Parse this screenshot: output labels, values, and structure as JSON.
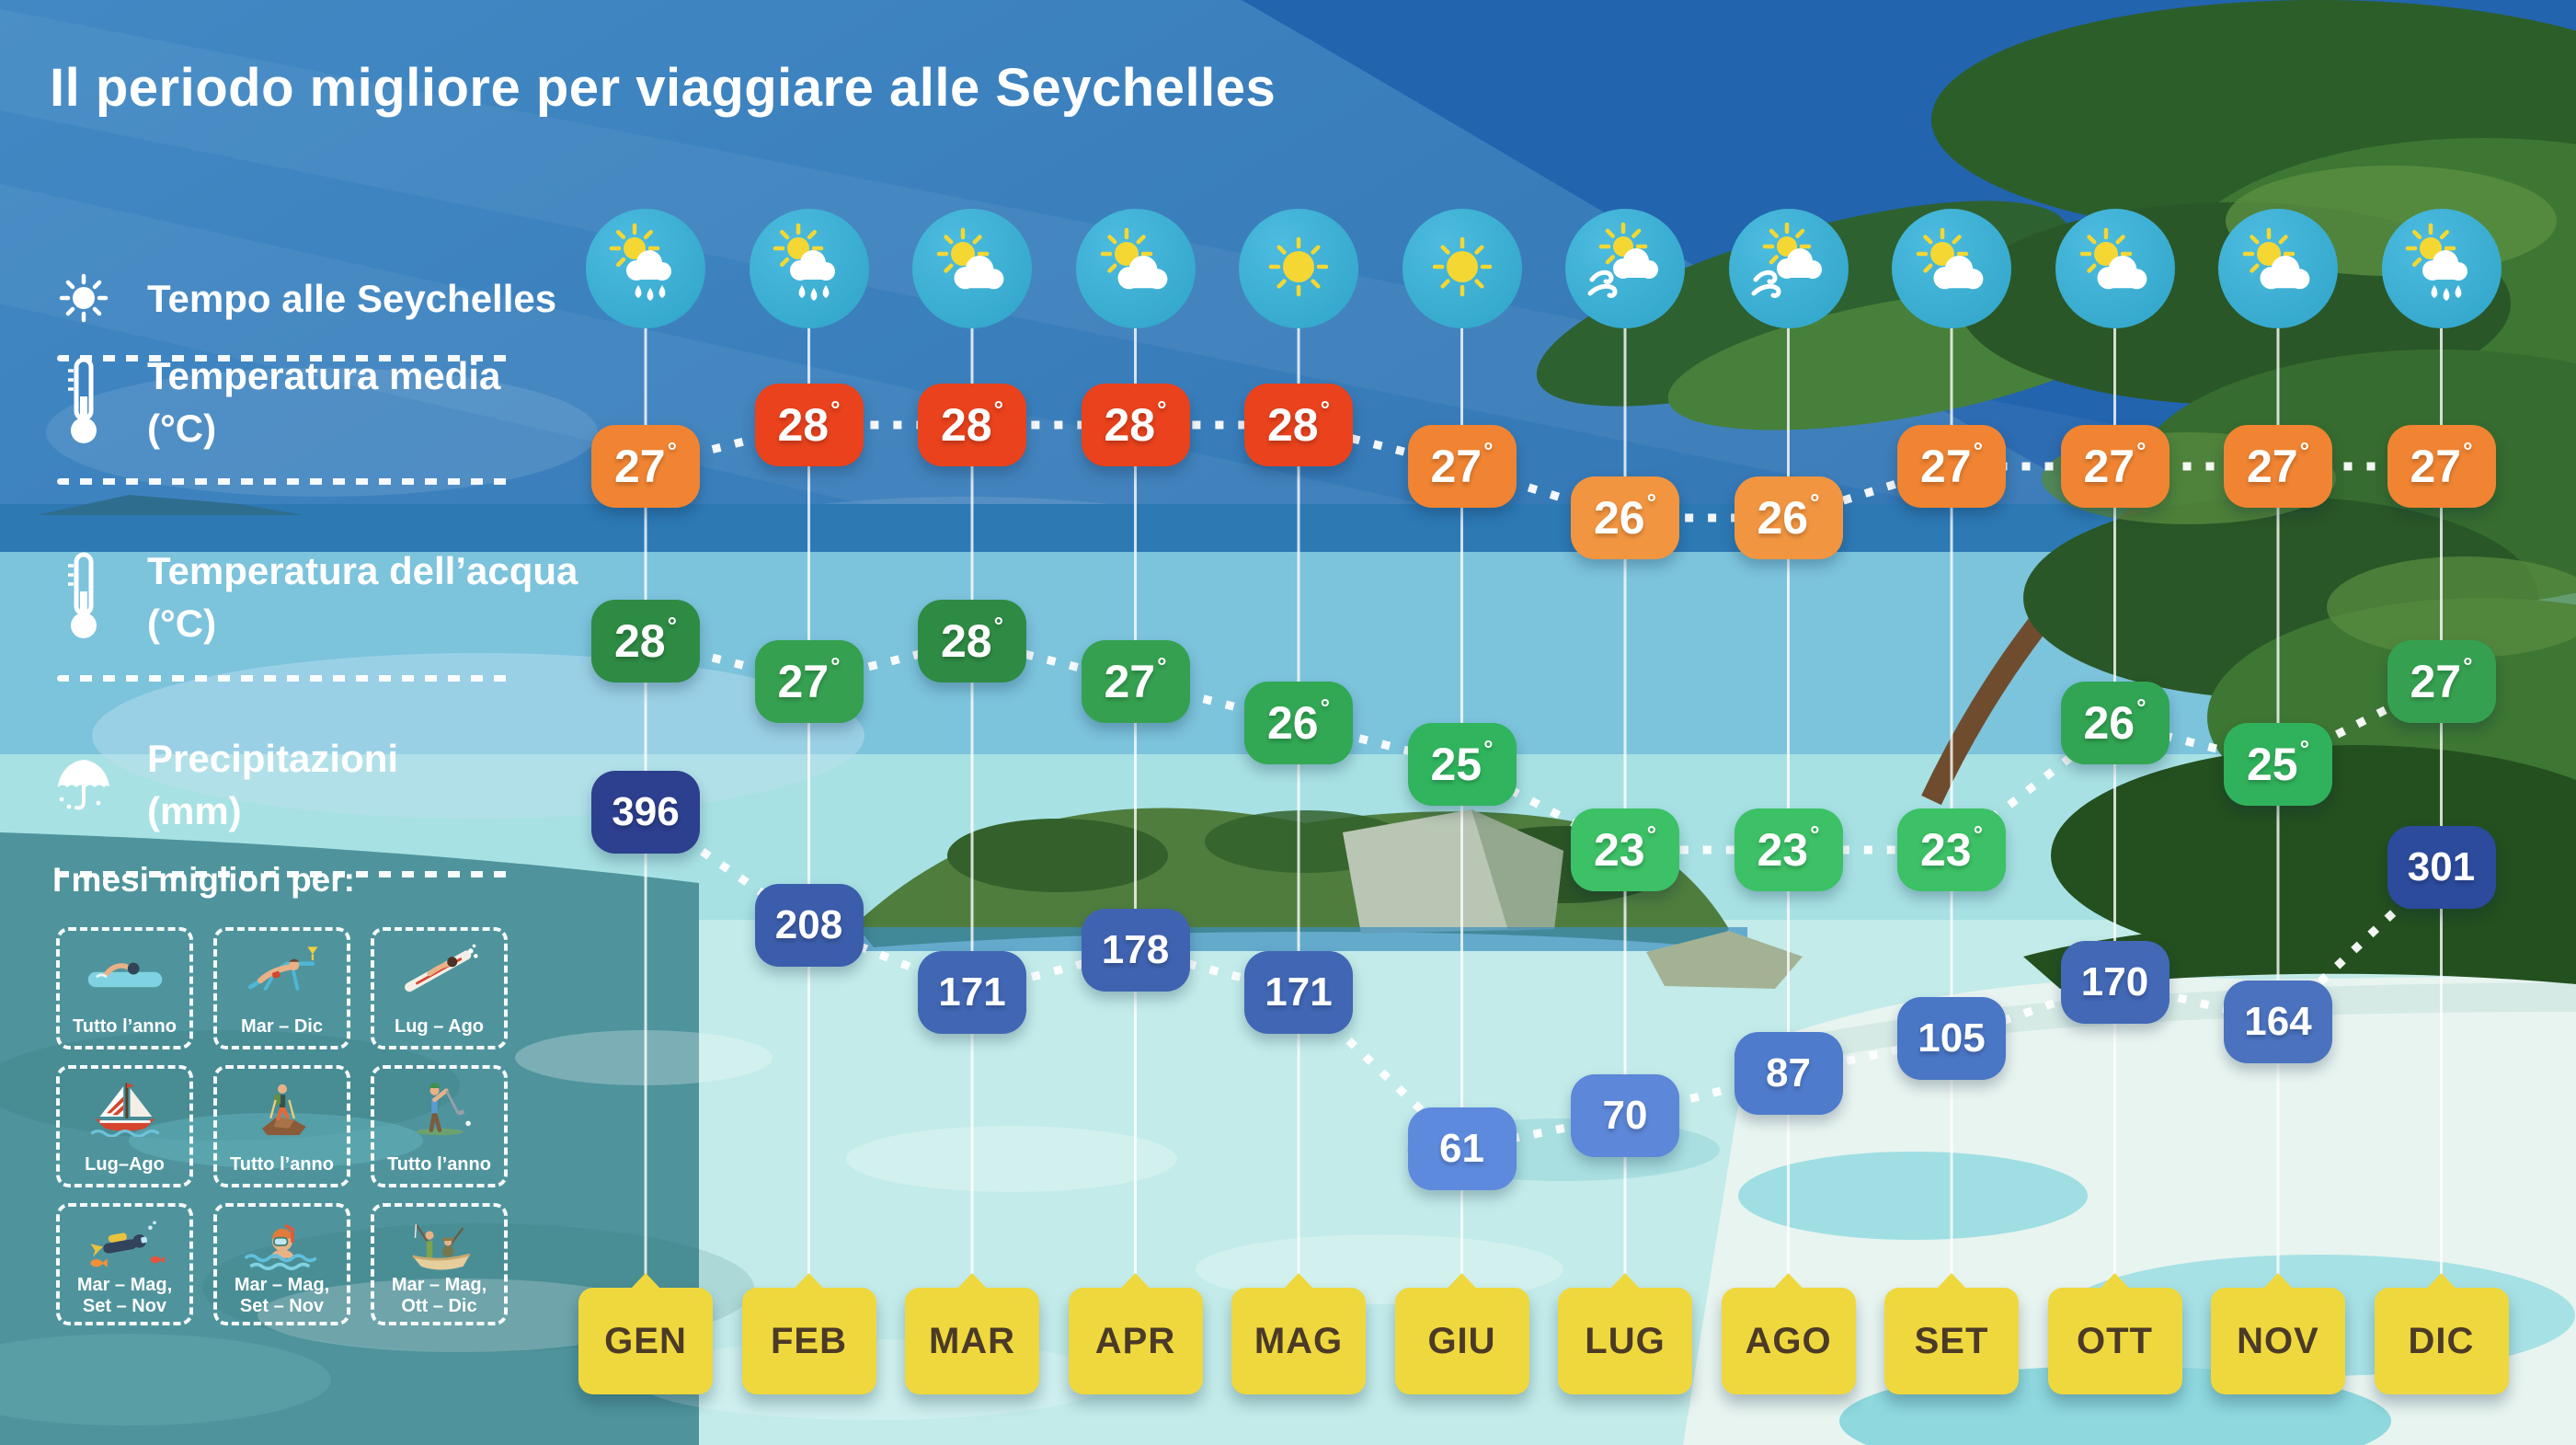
{
  "title": "Il periodo migliore per viaggiare alle Seychelles",
  "legend": {
    "weather_label": "Tempo alle Seychelles",
    "avg_temp_label": "Temperatura media",
    "avg_temp_unit": "(°C)",
    "water_temp_label": "Temperatura dell’acqua",
    "water_temp_unit": "(°C)",
    "precip_label": "Precipitazioni",
    "precip_unit": "(mm)"
  },
  "best_months": {
    "title": "I mesi migliori per:",
    "activities": [
      {
        "icon": "swimming-icon",
        "period": "Tutto l’anno"
      },
      {
        "icon": "sunbathing-icon",
        "period": "Mar – Dic"
      },
      {
        "icon": "surfing-icon",
        "period": "Lug – Ago"
      },
      {
        "icon": "sailing-icon",
        "period": "Lug–Ago"
      },
      {
        "icon": "hiking-icon",
        "period": "Tutto l’anno"
      },
      {
        "icon": "golf-icon",
        "period": "Tutto l’anno"
      },
      {
        "icon": "scuba-diving-icon",
        "period": "Mar – Mag,\nSet – Nov"
      },
      {
        "icon": "snorkeling-icon",
        "period": "Mar – Mag,\nSet – Nov"
      },
      {
        "icon": "fishing-icon",
        "period": "Mar – Mag,\nOtt – Dic"
      }
    ]
  },
  "chart_data": {
    "type": "table",
    "title": "Il periodo migliore per viaggiare alle Seychelles",
    "categories": [
      "GEN",
      "FEB",
      "MAR",
      "APR",
      "MAG",
      "GIU",
      "LUG",
      "AGO",
      "SET",
      "OTT",
      "NOV",
      "DIC"
    ],
    "weather_icons": [
      "sun-cloud-rain-icon",
      "sun-cloud-rain-icon",
      "sun-cloud-icon",
      "sun-cloud-icon",
      "sun-icon",
      "sun-icon",
      "sun-cloud-wind-icon",
      "sun-cloud-wind-icon",
      "sun-cloud-icon",
      "sun-cloud-icon",
      "sun-cloud-icon",
      "sun-cloud-rain-icon"
    ],
    "series": [
      {
        "name": "Temperatura media (°C)",
        "unit": "°",
        "values": [
          27,
          28,
          28,
          28,
          28,
          27,
          26,
          26,
          27,
          27,
          27,
          27
        ],
        "colors": [
          "#f08432",
          "#e9421c",
          "#e9421c",
          "#e9421c",
          "#e9421c",
          "#f08432",
          "#f29540",
          "#f29540",
          "#f08432",
          "#f08432",
          "#f08432",
          "#f08432"
        ]
      },
      {
        "name": "Temperatura dell’acqua (°C)",
        "unit": "°",
        "values": [
          28,
          27,
          28,
          27,
          26,
          25,
          23,
          23,
          23,
          26,
          25,
          27
        ],
        "colors": [
          "#2e8b44",
          "#35a150",
          "#2e8b44",
          "#35a150",
          "#32a854",
          "#30b55e",
          "#3cc166",
          "#3cc166",
          "#3cc166",
          "#31a553",
          "#30b25c",
          "#35a150"
        ]
      },
      {
        "name": "Precipitazioni (mm)",
        "unit": "",
        "values": [
          396,
          208,
          171,
          178,
          171,
          61,
          70,
          87,
          105,
          170,
          164,
          301
        ],
        "colors": [
          "#2d3f8f",
          "#3c5dab",
          "#4066b4",
          "#3f63b1",
          "#4066b4",
          "#5e8ade",
          "#5d87d8",
          "#4f7bcd",
          "#4a76c6",
          "#4268b6",
          "#4a72bf",
          "#2c4b9d"
        ]
      }
    ],
    "month_badge_color": "#efd83d",
    "month_text_color": "#4b3a27",
    "weather_circle_color": "#3bafd5",
    "connector_color": "#ffffff"
  }
}
